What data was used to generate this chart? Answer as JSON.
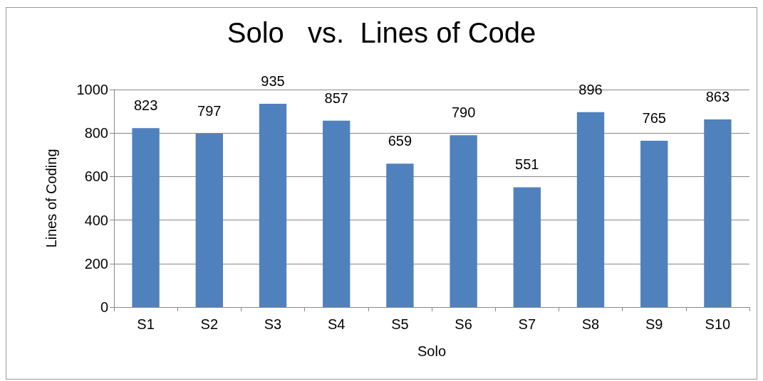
{
  "chart_data": {
    "type": "bar",
    "title": "Solo   vs.  Lines of Code",
    "xlabel": "Solo",
    "ylabel": "Lines of Coding",
    "categories": [
      "S1",
      "S2",
      "S3",
      "S4",
      "S5",
      "S6",
      "S7",
      "S8",
      "S9",
      "S10"
    ],
    "values": [
      823,
      797,
      935,
      857,
      659,
      790,
      551,
      896,
      765,
      863
    ],
    "color": "#4f81bd",
    "ylim": [
      0,
      1000
    ],
    "yticks": [
      0,
      200,
      400,
      600,
      800,
      1000
    ],
    "grid": "y",
    "data_labels": true
  }
}
